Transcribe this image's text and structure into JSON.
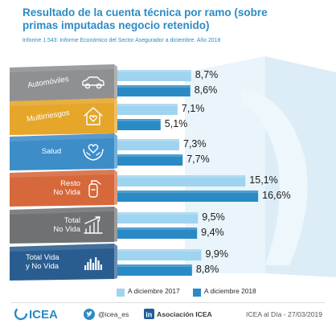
{
  "title": "Resultado de la cuenta técnica por ramo (sobre primas imputadas negocio retenido)",
  "subtitle": "Informe 1.543: Informe Económico del Sector Asegurador a diciembre. Año 2018",
  "colors": {
    "series_2017": "#9fd4f0",
    "series_2018": "#2a8ac6",
    "title": "#2d8bc4",
    "panel_automoviles": "#8f9092",
    "panel_multirriesgos": "#e5a62a",
    "panel_salud": "#3d8dc8",
    "panel_resto_no_vida": "#d6683b",
    "panel_total_no_vida": "#707173",
    "panel_total_vida_no_vida": "#2a5d8f"
  },
  "chart_data": {
    "type": "bar",
    "orientation": "horizontal",
    "categories": [
      "Automóviles",
      "Multirriesgos",
      "Salud",
      "Resto No Vida",
      "Total No Vida",
      "Total Vida y No Vida"
    ],
    "category_icons": [
      "car-icon",
      "house-icon",
      "heart-hands-icon",
      "fire-extinguisher-icon",
      "growth-chart-icon",
      "bar-chart-icon"
    ],
    "series": [
      {
        "name": "A diciembre 2017",
        "values": [
          8.7,
          7.1,
          7.3,
          15.1,
          9.5,
          9.9
        ],
        "labels": [
          "8,7%",
          "7,1%",
          "7,3%",
          "15,1%",
          "9,5%",
          "9,9%"
        ]
      },
      {
        "name": "A diciembre 2018",
        "values": [
          8.6,
          5.1,
          7.7,
          16.6,
          9.4,
          8.8
        ],
        "labels": [
          "8,6%",
          "5,1%",
          "7,7%",
          "16,6%",
          "9,4%",
          "8,8%"
        ]
      }
    ],
    "unit": "%",
    "legend_position": "bottom",
    "grid": false
  },
  "footer": {
    "logo_text": "ICEA",
    "twitter": "@icea_es",
    "linkedin": "Asociación ICEA",
    "credit": "ICEA al Día - 27/03/2019"
  }
}
